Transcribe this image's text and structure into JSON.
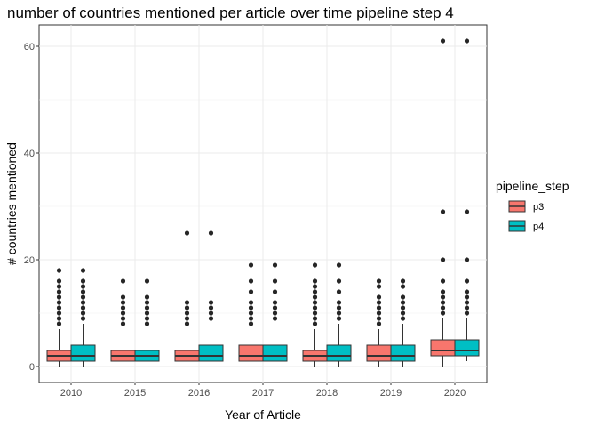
{
  "chart_data": {
    "type": "box",
    "title": "number of countries mentioned per article over time pipeline step 4",
    "xlabel": "Year of Article",
    "ylabel": "# countries mentioned",
    "categories": [
      "2010",
      "2015",
      "2016",
      "2017",
      "2018",
      "2019",
      "2020"
    ],
    "ylim": [
      -3,
      64
    ],
    "yticks": [
      0,
      20,
      40,
      60
    ],
    "grid": true,
    "legend": {
      "title": "pipeline_step",
      "position": "right"
    },
    "series": [
      {
        "name": "p3",
        "color": "#F8766D",
        "boxes": [
          {
            "min": 0,
            "q1": 1,
            "median": 2,
            "q3": 3,
            "max": 7,
            "outliers": [
              8,
              9,
              10,
              11,
              12,
              13,
              14,
              15,
              16,
              18
            ]
          },
          {
            "min": 0,
            "q1": 1,
            "median": 2,
            "q3": 3,
            "max": 7,
            "outliers": [
              8,
              9,
              10,
              11,
              12,
              13,
              16
            ]
          },
          {
            "min": 0,
            "q1": 1,
            "median": 2,
            "q3": 3,
            "max": 7,
            "outliers": [
              8,
              9,
              10,
              11,
              12,
              25
            ]
          },
          {
            "min": 0,
            "q1": 1,
            "median": 2,
            "q3": 4,
            "max": 7,
            "outliers": [
              8,
              9,
              10,
              11,
              12,
              14,
              16,
              19
            ]
          },
          {
            "min": 0,
            "q1": 1,
            "median": 2,
            "q3": 3,
            "max": 7,
            "outliers": [
              8,
              9,
              10,
              11,
              12,
              13,
              14,
              15,
              16,
              19
            ]
          },
          {
            "min": 0,
            "q1": 1,
            "median": 2,
            "q3": 4,
            "max": 7,
            "outliers": [
              8,
              9,
              10,
              11,
              12,
              13,
              15,
              16
            ]
          },
          {
            "min": 0,
            "q1": 2,
            "median": 3,
            "q3": 5,
            "max": 9,
            "outliers": [
              10,
              11,
              12,
              13,
              14,
              16,
              20,
              29,
              61
            ]
          }
        ]
      },
      {
        "name": "p4",
        "color": "#00BFC4",
        "boxes": [
          {
            "min": 0,
            "q1": 1,
            "median": 2,
            "q3": 4,
            "max": 8,
            "outliers": [
              9,
              10,
              11,
              12,
              13,
              14,
              15,
              16,
              18
            ]
          },
          {
            "min": 0,
            "q1": 1,
            "median": 2,
            "q3": 3,
            "max": 7,
            "outliers": [
              8,
              9,
              10,
              11,
              12,
              13,
              16
            ]
          },
          {
            "min": 0,
            "q1": 1,
            "median": 2,
            "q3": 4,
            "max": 8,
            "outliers": [
              9,
              10,
              11,
              12,
              25
            ]
          },
          {
            "min": 0,
            "q1": 1,
            "median": 2,
            "q3": 4,
            "max": 8,
            "outliers": [
              9,
              10,
              11,
              12,
              14,
              16,
              19
            ]
          },
          {
            "min": 0,
            "q1": 1,
            "median": 2,
            "q3": 4,
            "max": 8,
            "outliers": [
              9,
              10,
              11,
              12,
              14,
              16,
              19
            ]
          },
          {
            "min": 0,
            "q1": 1,
            "median": 2,
            "q3": 4,
            "max": 8,
            "outliers": [
              9,
              10,
              11,
              12,
              13,
              15,
              16
            ]
          },
          {
            "min": 1,
            "q1": 2,
            "median": 3,
            "q3": 5,
            "max": 9,
            "outliers": [
              10,
              11,
              12,
              13,
              14,
              16,
              20,
              29,
              61
            ]
          }
        ]
      }
    ]
  }
}
